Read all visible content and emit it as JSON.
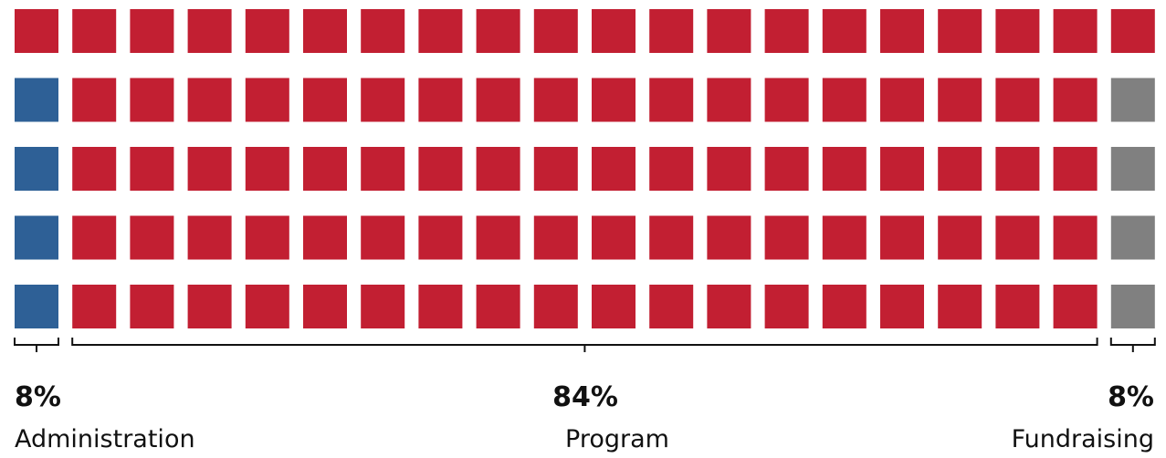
{
  "chart_data": {
    "type": "waffle",
    "rows": 5,
    "columns": 20,
    "unit_percent": 1,
    "colors": {
      "Administration": "#2e6096",
      "Program": "#c21f32",
      "Fundraising": "#808080"
    },
    "segments": [
      {
        "name": "Administration",
        "value": 8,
        "label": "8%"
      },
      {
        "name": "Program",
        "value": 84,
        "label": "84%"
      },
      {
        "name": "Fundraising",
        "value": 8,
        "label": "8%"
      }
    ]
  }
}
